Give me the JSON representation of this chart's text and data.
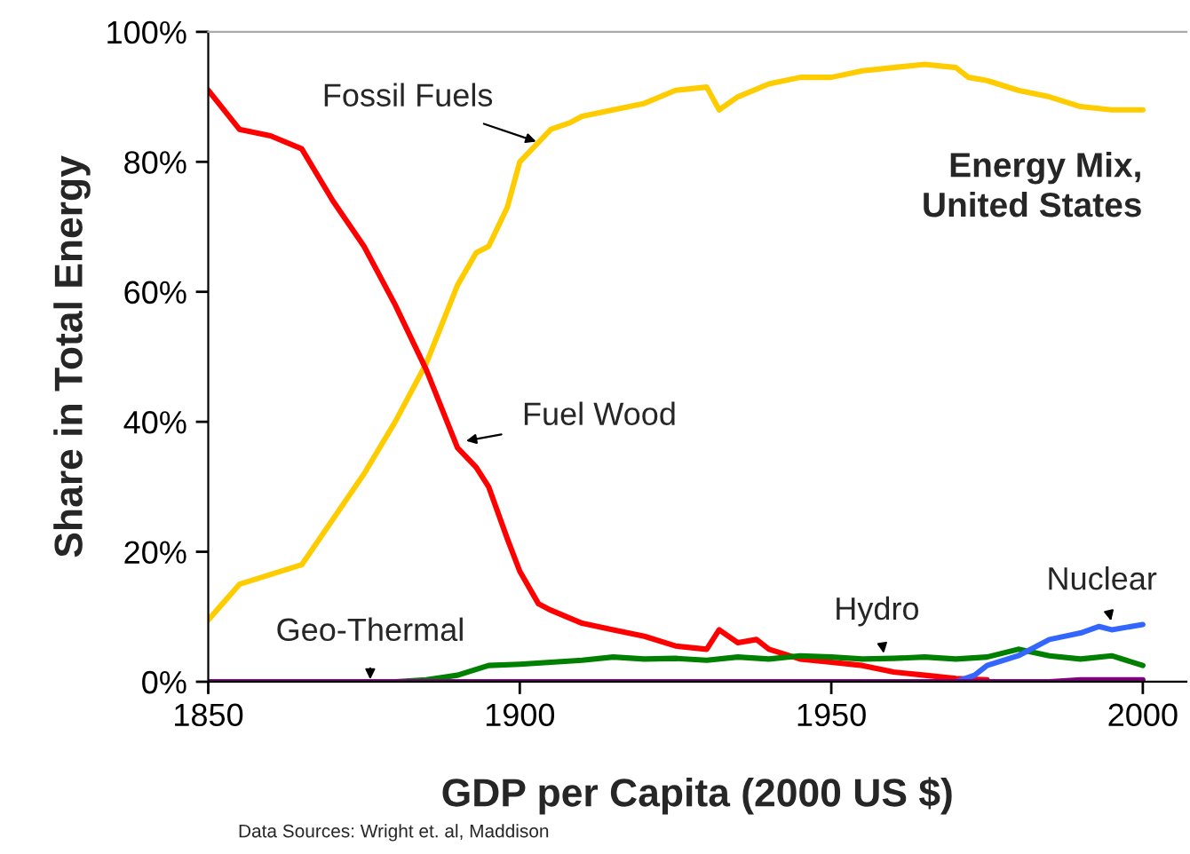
{
  "chart_data": {
    "type": "line",
    "title": "Energy Mix,\nUnited States",
    "xlabel": "GDP per Capita (2000 US $)",
    "ylabel": "Share in Total Energy",
    "xlim": [
      1850,
      2007
    ],
    "xticks": [
      1850,
      1900,
      1950,
      2000
    ],
    "ylim": [
      0,
      100
    ],
    "yticks": [
      {
        "value": 0,
        "label": "0%"
      },
      {
        "value": 20,
        "label": "20%"
      },
      {
        "value": 40,
        "label": "40%"
      },
      {
        "value": 60,
        "label": "60%"
      },
      {
        "value": 80,
        "label": "80%"
      },
      {
        "value": 100,
        "label": "100%"
      }
    ],
    "grid": false,
    "legend": false,
    "marker": "none",
    "line_style": "solid",
    "series": [
      {
        "color": "#ffcc00",
        "x": [
          1850,
          1855,
          1860,
          1865,
          1870,
          1875,
          1880,
          1885,
          1890,
          1893,
          1895,
          1898,
          1900,
          1903,
          1905,
          1908,
          1910,
          1915,
          1920,
          1925,
          1930,
          1932,
          1935,
          1940,
          1945,
          1950,
          1955,
          1960,
          1965,
          1970,
          1972,
          1975,
          1980,
          1985,
          1990,
          1995,
          2000
        ],
        "values": [
          9.5,
          15,
          16.5,
          18,
          25,
          32,
          40,
          49,
          61,
          66,
          67,
          73,
          80,
          83,
          85,
          86,
          87,
          88,
          89,
          91,
          91.5,
          88,
          90,
          92,
          93,
          93,
          94,
          94.5,
          95,
          94.5,
          93,
          92.5,
          91,
          90,
          88.5,
          88,
          88
        ]
      },
      {
        "color": "#ff0000",
        "x": [
          1850,
          1855,
          1860,
          1865,
          1870,
          1875,
          1880,
          1885,
          1890,
          1893,
          1895,
          1898,
          1900,
          1903,
          1905,
          1910,
          1915,
          1920,
          1925,
          1930,
          1932,
          1935,
          1938,
          1940,
          1945,
          1950,
          1955,
          1960,
          1965,
          1970,
          1975
        ],
        "values": [
          91,
          85,
          84,
          82,
          74,
          67,
          58,
          48,
          36,
          33,
          30,
          22,
          17,
          12,
          11,
          9,
          8,
          7,
          5.5,
          5,
          8,
          6,
          6.5,
          5,
          3.5,
          3,
          2.5,
          1.5,
          1,
          0.5,
          0.3
        ]
      },
      {
        "color": "#008000",
        "x": [
          1850,
          1880,
          1885,
          1890,
          1895,
          1900,
          1905,
          1910,
          1915,
          1920,
          1925,
          1930,
          1935,
          1940,
          1945,
          1950,
          1955,
          1960,
          1965,
          1970,
          1975,
          1980,
          1985,
          1990,
          1995,
          2000
        ],
        "values": [
          0,
          0,
          0.3,
          1,
          2.5,
          2.7,
          3,
          3.3,
          3.8,
          3.5,
          3.6,
          3.3,
          3.8,
          3.5,
          4,
          3.8,
          3.5,
          3.6,
          3.8,
          3.5,
          3.8,
          5,
          4,
          3.5,
          4,
          2.5
        ]
      },
      {
        "color": "#3366ff",
        "x": [
          1970,
          1973,
          1975,
          1980,
          1985,
          1990,
          1993,
          1995,
          2000
        ],
        "values": [
          0,
          1,
          2.5,
          4,
          6.5,
          7.5,
          8.5,
          8,
          8.8
        ]
      },
      {
        "color": "#800080",
        "x": [
          1850,
          1985,
          1990,
          2000
        ],
        "values": [
          0,
          0,
          0.3,
          0.3
        ]
      }
    ],
    "annotations": [
      {
        "text": "Fossil Fuels",
        "x": 1903,
        "y": 83
      },
      {
        "text": "Fuel Wood",
        "x": 1891,
        "y": 37
      },
      {
        "text": "Geo-Thermal",
        "x": 1876,
        "y": 0
      },
      {
        "text": "Hydro",
        "x": 1958.5,
        "y": 4
      },
      {
        "text": "Nuclear",
        "x": 1995,
        "y": 9
      },
      "Data Sources: Wright et. al, Maddison"
    ]
  }
}
